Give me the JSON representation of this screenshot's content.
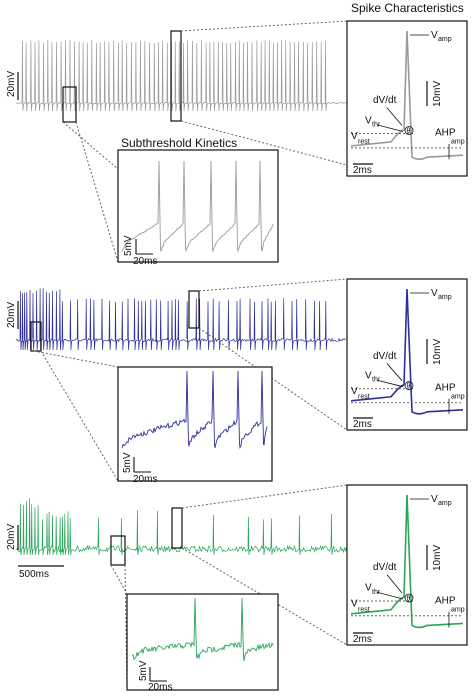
{
  "titles": {
    "spike": "Spike Characteristics",
    "subthreshold": "Subthreshold Kinetics"
  },
  "colors": {
    "gray": "#9a9a9a",
    "blue": "#2e2f9c",
    "green": "#2aa55a",
    "frame": "#111111",
    "dash": "#666666"
  },
  "panels": [
    {
      "id": "gray",
      "trace_scale": "20mV",
      "inset_scale_v": "5mV",
      "inset_scale_t": "20ms",
      "spike_scale_v": "10mV",
      "spike_scale_t": "2ms"
    },
    {
      "id": "blue",
      "trace_scale": "20mV",
      "inset_scale_v": "5mV",
      "inset_scale_t": "20ms",
      "spike_scale_v": "10mV",
      "spike_scale_t": "2ms"
    },
    {
      "id": "green",
      "trace_scale": "20mV",
      "time_scale": "500ms",
      "inset_scale_v": "5mV",
      "inset_scale_t": "20ms",
      "spike_scale_v": "10mV",
      "spike_scale_t": "2ms"
    }
  ],
  "labels": {
    "v": "V",
    "amp": "amp",
    "thr": "thr",
    "rest": "rest",
    "dvdt": "dV/dt",
    "ahp": "AHP",
    "theta": "θ"
  }
}
